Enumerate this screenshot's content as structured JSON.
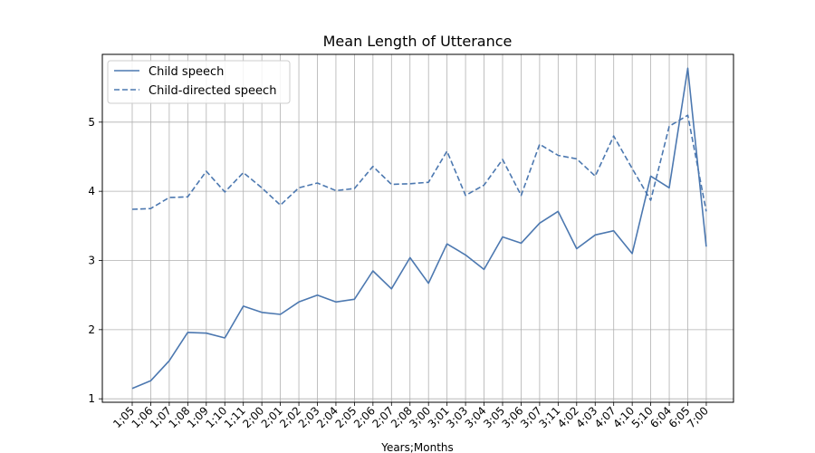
{
  "chart_data": {
    "type": "line",
    "title": "Mean Length of Utterance",
    "xlabel": "Years;Months",
    "ylabel": "",
    "categories": [
      "1;05",
      "1;06",
      "1;07",
      "1;08",
      "1;09",
      "1;10",
      "1;11",
      "2;00",
      "2;01",
      "2;02",
      "2;03",
      "2;04",
      "2;05",
      "2;06",
      "2;07",
      "2;08",
      "3;00",
      "3;01",
      "3;03",
      "3;04",
      "3;05",
      "3;06",
      "3;07",
      "3;11",
      "4;02",
      "4;03",
      "4;07",
      "4;10",
      "5;10",
      "6;04",
      "6;05",
      "7;00"
    ],
    "yticks": [
      1,
      2,
      3,
      4,
      5
    ],
    "ylim": [
      0.95,
      5.98
    ],
    "grid": true,
    "legend_position": "top-left",
    "series": [
      {
        "name": "Child speech",
        "style": "solid",
        "color": "#4c78b0",
        "values": [
          1.15,
          1.26,
          1.55,
          1.96,
          1.95,
          1.88,
          2.34,
          2.25,
          2.22,
          2.4,
          2.5,
          2.4,
          2.44,
          2.85,
          2.59,
          3.04,
          2.67,
          3.24,
          3.08,
          2.87,
          3.34,
          3.25,
          3.54,
          3.71,
          3.17,
          3.37,
          3.43,
          3.1,
          4.22,
          4.05,
          5.78,
          3.2
        ]
      },
      {
        "name": "Child-directed speech",
        "style": "dashed",
        "color": "#4c78b0",
        "values": [
          3.74,
          3.75,
          3.91,
          3.92,
          4.29,
          3.99,
          4.27,
          4.05,
          3.8,
          4.05,
          4.12,
          4.01,
          4.04,
          4.36,
          4.1,
          4.11,
          4.13,
          4.58,
          3.94,
          4.09,
          4.46,
          3.94,
          4.68,
          4.52,
          4.47,
          4.22,
          4.8,
          4.33,
          3.87,
          4.94,
          5.1,
          3.71
        ]
      }
    ]
  }
}
